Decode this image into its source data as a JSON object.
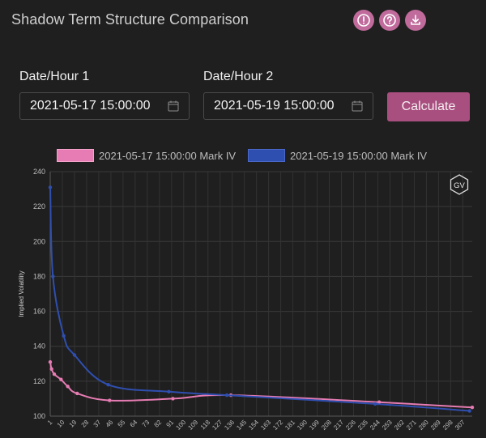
{
  "header": {
    "title": "Shadow Term Structure Comparison",
    "icons": [
      "alert-icon",
      "help-icon",
      "download-icon"
    ]
  },
  "form": {
    "label1": "Date/Hour 1",
    "value1": "2021-05-17 15:00:00",
    "label2": "Date/Hour 2",
    "value2": "2021-05-19 15:00:00",
    "calculate_label": "Calculate"
  },
  "colors": {
    "accent": "#c06b9c",
    "button": "#a94f7f",
    "series1": "#e67cb3",
    "series2": "#2f4fb0"
  },
  "chart_data": {
    "type": "line",
    "ylabel": "Implied Volatility",
    "xlabel": "",
    "ylim": [
      100,
      240
    ],
    "yticks": [
      100,
      120,
      140,
      160,
      180,
      200,
      220,
      240
    ],
    "xticks": [
      1,
      10,
      19,
      28,
      37,
      46,
      55,
      64,
      73,
      82,
      91,
      100,
      109,
      118,
      127,
      136,
      145,
      154,
      163,
      172,
      181,
      190,
      199,
      208,
      217,
      226,
      235,
      244,
      253,
      262,
      271,
      280,
      289,
      298,
      307
    ],
    "xlim": [
      1,
      314
    ],
    "grid": true,
    "legend_position": "top",
    "badge": "GV",
    "series": [
      {
        "name": "2021-05-17 15:00:00 Mark IV",
        "color": "#e67cb3",
        "points": [
          [
            1,
            131
          ],
          [
            2,
            127
          ],
          [
            4,
            124
          ],
          [
            9,
            121
          ],
          [
            14,
            117
          ],
          [
            21,
            113
          ],
          [
            45,
            109
          ],
          [
            92,
            110
          ],
          [
            135,
            112
          ],
          [
            245,
            108
          ],
          [
            314,
            105
          ]
        ]
      },
      {
        "name": "2021-05-19 15:00:00 Mark IV",
        "color": "#2f4fb0",
        "points": [
          [
            1,
            231
          ],
          [
            3,
            180
          ],
          [
            11,
            146
          ],
          [
            19,
            135
          ],
          [
            44,
            118
          ],
          [
            89,
            114
          ],
          [
            132,
            112
          ],
          [
            242,
            107
          ],
          [
            312,
            103
          ]
        ]
      }
    ]
  }
}
